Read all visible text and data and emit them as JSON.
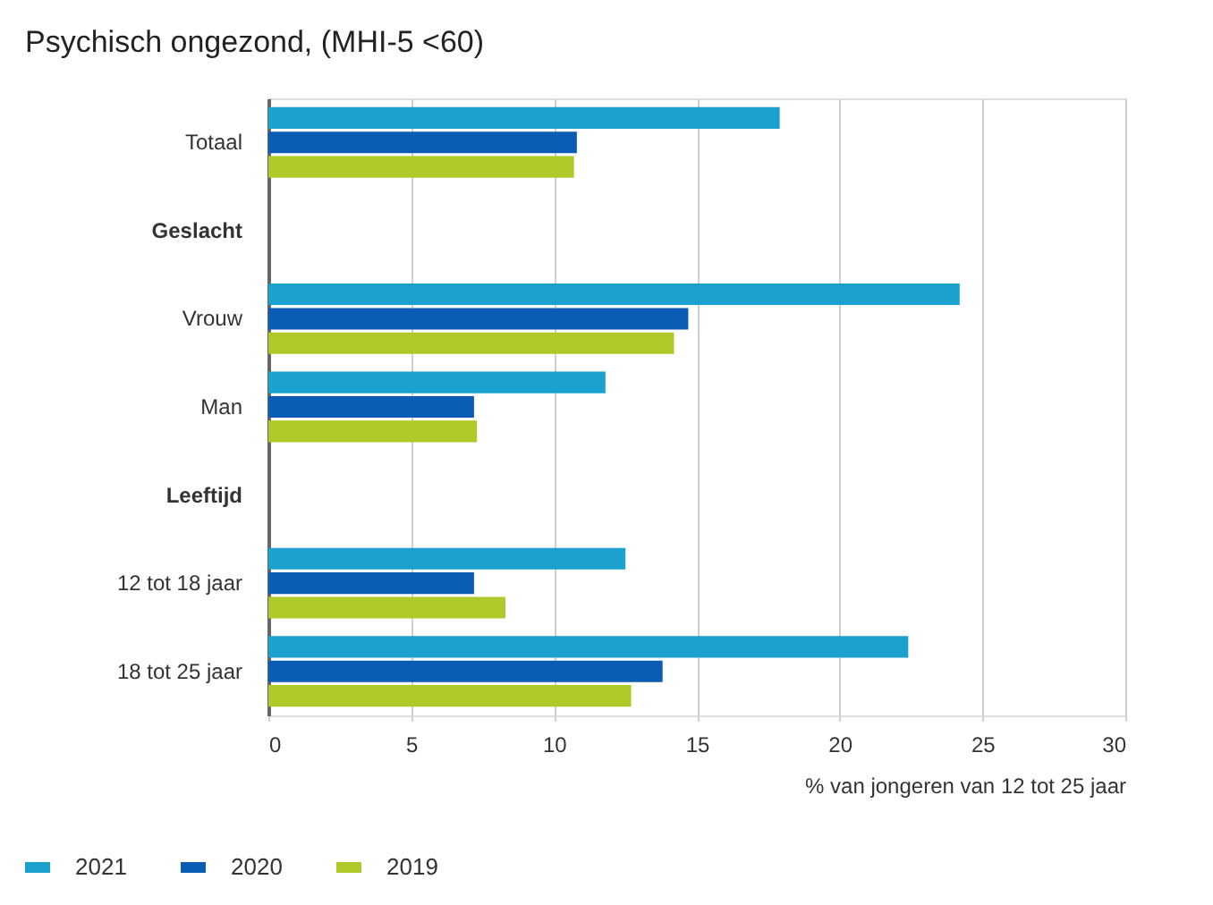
{
  "chart_data": {
    "type": "bar",
    "orientation": "horizontal",
    "title": "Psychisch ongezond, (MHI-5 <60)",
    "xlabel": "% van jongeren van 12 tot 25 jaar",
    "categories": [
      "Totaal",
      "Geslacht",
      "Vrouw",
      "Man",
      "Leeftijd",
      "12 tot 18 jaar",
      "18 tot 25 jaar"
    ],
    "series": [
      {
        "name": "2021",
        "color": "#1ba1cd",
        "values": [
          17.9,
          null,
          24.2,
          11.8,
          null,
          12.5,
          22.4
        ]
      },
      {
        "name": "2020",
        "color": "#0a5cb5",
        "values": [
          10.8,
          null,
          14.7,
          7.2,
          null,
          7.2,
          13.8
        ]
      },
      {
        "name": "2019",
        "color": "#afca28",
        "values": [
          10.7,
          null,
          14.2,
          7.3,
          null,
          8.3,
          12.7
        ]
      }
    ],
    "xlim": [
      0,
      30
    ],
    "xticks": [
      0,
      5,
      10,
      15,
      20,
      25,
      30
    ],
    "grid": "x",
    "legend": "bottom"
  }
}
